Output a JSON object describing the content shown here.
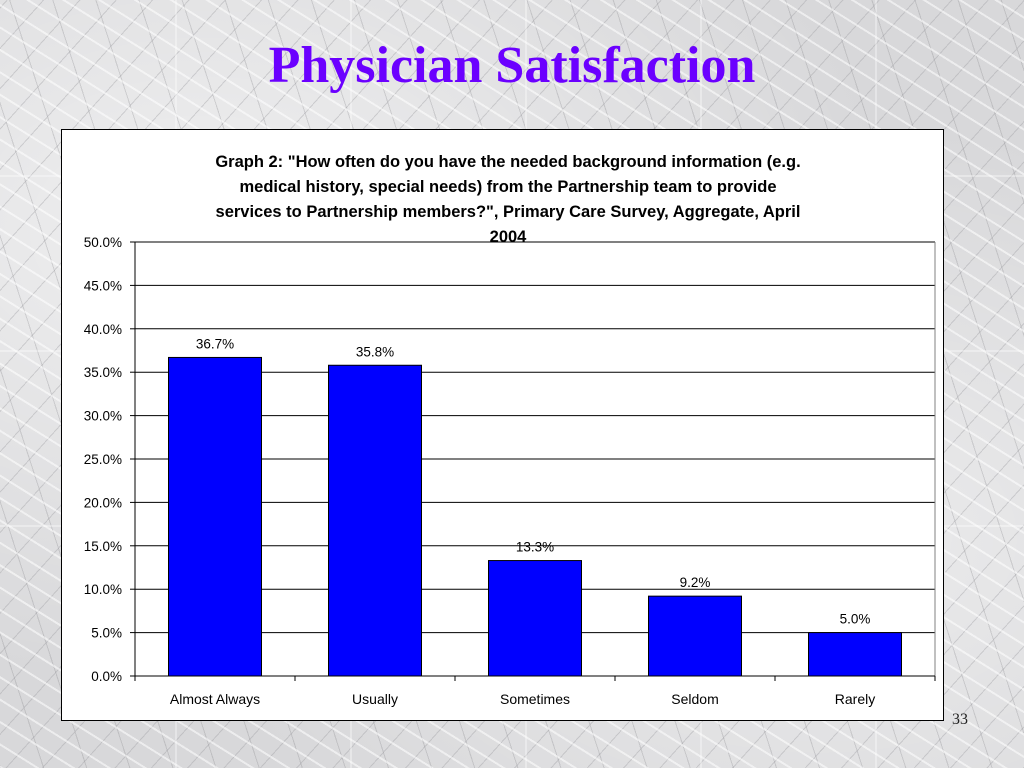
{
  "slide": {
    "title": "Physician Satisfaction",
    "page_number": "33"
  },
  "colors": {
    "title": "#6b00ff",
    "bar": "#0000ff"
  },
  "chart_data": {
    "type": "bar",
    "title": "Graph 2: \"How often do you have the needed background information (e.g. medical history, special needs) from the Partnership team to provide services to Partnership members?\", Primary Care Survey, Aggregate, April 2004",
    "title_lines": [
      "Graph 2: \"How often do you have the needed background information (e.g.",
      "medical history, special needs) from the Partnership team to provide",
      "services to Partnership members?\", Primary Care Survey, Aggregate, April",
      "2004"
    ],
    "categories": [
      "Almost Always",
      "Usually",
      "Sometimes",
      "Seldom",
      "Rarely"
    ],
    "values": [
      36.7,
      35.8,
      13.3,
      9.2,
      5.0
    ],
    "data_labels": [
      "36.7%",
      "35.8%",
      "13.3%",
      "9.2%",
      "5.0%"
    ],
    "xlabel": "",
    "ylabel": "",
    "ylim": [
      0,
      50
    ],
    "y_ticks": [
      0,
      5,
      10,
      15,
      20,
      25,
      30,
      35,
      40,
      45,
      50
    ],
    "y_tick_labels": [
      "0.0%",
      "5.0%",
      "10.0%",
      "15.0%",
      "20.0%",
      "25.0%",
      "30.0%",
      "35.0%",
      "40.0%",
      "45.0%",
      "50.0%"
    ],
    "grid": true,
    "legend": "none"
  }
}
